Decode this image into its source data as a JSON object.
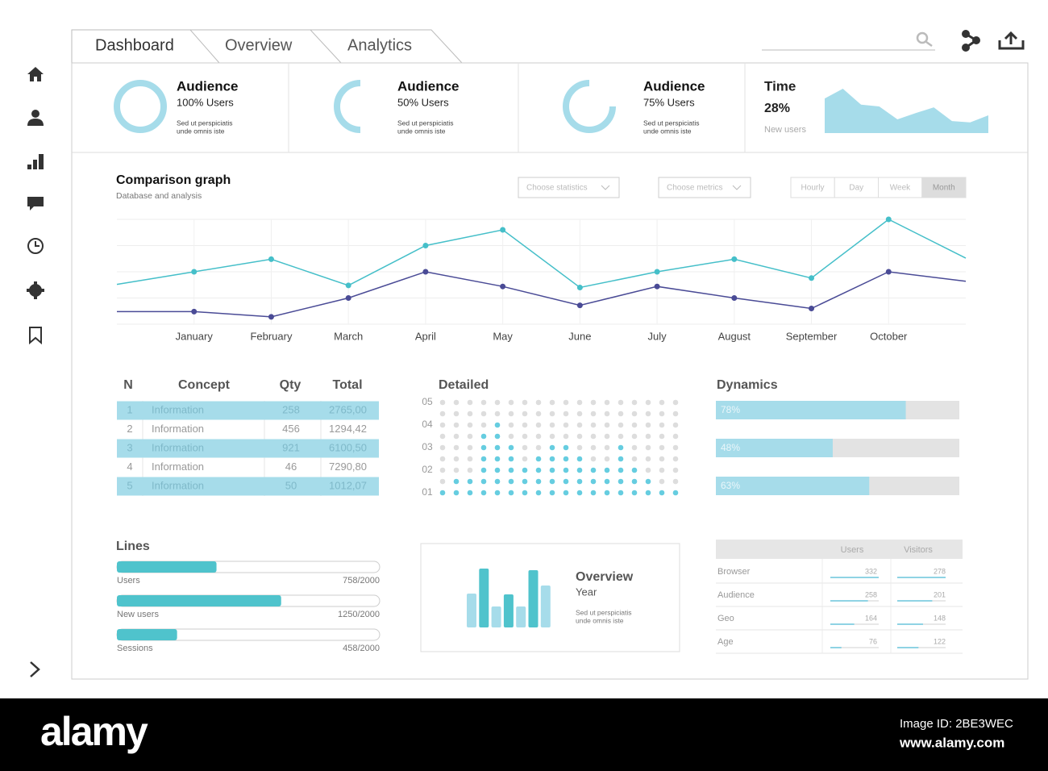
{
  "tabs": [
    "Dashboard",
    "Overview",
    "Analytics"
  ],
  "kpis": [
    {
      "title": "Audience",
      "value": "100% Users",
      "percent": 100,
      "note": [
        "Sed ut perspiciatis",
        "unde omnis iste"
      ]
    },
    {
      "title": "Audience",
      "value": "50% Users",
      "percent": 50,
      "note": [
        "Sed ut perspiciatis",
        "unde omnis iste"
      ]
    },
    {
      "title": "Audience",
      "value": "75% Users",
      "percent": 75,
      "note": [
        "Sed ut perspiciatis",
        "unde omnis iste"
      ]
    }
  ],
  "time_card": {
    "title": "Time",
    "value": "28%",
    "subtitle": "New users",
    "type": "area",
    "trend": [
      78,
      100,
      64,
      60,
      31,
      45,
      58,
      27,
      24,
      40
    ],
    "ylim": [
      0,
      100
    ],
    "color": "#a6dcea"
  },
  "comparison": {
    "title": "Comparison graph",
    "subtitle": "Database and analysis",
    "filters": [
      "Choose statistics",
      "Choose metrics"
    ],
    "periods": [
      "Hourly",
      "Day",
      "Week",
      "Month"
    ],
    "active_period": "Month",
    "chart": {
      "type": "line",
      "categories": [
        null,
        "January",
        "February",
        "March",
        "April",
        "May",
        "June",
        "July",
        "August",
        "September",
        "October",
        null
      ],
      "series": [
        {
          "color": "#45bfc9",
          "values": [
            38,
            50,
            62,
            37,
            75,
            90,
            35,
            50,
            62,
            44,
            100,
            63
          ]
        },
        {
          "color": "#4a4b96",
          "values": [
            12,
            12,
            7,
            25,
            50,
            36,
            18,
            36,
            25,
            15,
            50,
            41
          ]
        }
      ],
      "ylim": [
        0,
        100
      ],
      "grid": true
    }
  },
  "table": {
    "headers": [
      "N",
      "Concept",
      "Qty",
      "Total"
    ],
    "rows": [
      [
        "1",
        "Information",
        "258",
        "2765,00"
      ],
      [
        "2",
        "Information",
        "456",
        "1294,42"
      ],
      [
        "3",
        "Information",
        "921",
        "6100,50"
      ],
      [
        "4",
        "Information",
        "46",
        "7290,80"
      ],
      [
        "5",
        "Information",
        "50",
        "1012,07"
      ]
    ]
  },
  "detailed": {
    "title": "Detailed",
    "type": "dot-matrix",
    "values": [
      1,
      1.5,
      1.5,
      3.5,
      4,
      3,
      2,
      2.5,
      3,
      3,
      2.5,
      2,
      2,
      3,
      2,
      1.5,
      1,
      1
    ],
    "ylim": [
      1,
      5
    ],
    "yticks": [
      {
        "value": 1,
        "label": "01"
      },
      {
        "value": 2,
        "label": "02"
      },
      {
        "value": 3,
        "label": "03"
      },
      {
        "value": 4,
        "label": "04"
      },
      {
        "value": 5,
        "label": "05"
      }
    ],
    "color": "#66cde0"
  },
  "dynamics": {
    "title": "Dynamics",
    "values": [
      78,
      48,
      63
    ],
    "value_labels": [
      "78%",
      "48%",
      "63%"
    ],
    "color": "#a6dcea"
  },
  "lines": {
    "title": "Lines",
    "color": "#4fc3cc",
    "items": [
      {
        "name": "Users",
        "value": 758,
        "max": 2000,
        "value_label": "758/2000"
      },
      {
        "name": "New users",
        "value": 1250,
        "max": 2000,
        "value_label": "1250/2000"
      },
      {
        "name": "Sessions",
        "value": 458,
        "max": 2000,
        "value_label": "458/2000"
      }
    ]
  },
  "overview": {
    "title": "Overview",
    "subtitle": "Year",
    "note": [
      "Sed ut perspiciatis",
      "unde omnis iste"
    ],
    "type": "bar",
    "values": [
      42,
      73,
      26,
      41,
      26,
      71,
      52
    ],
    "colors": [
      "#a6dcea",
      "#4fc3cc",
      "#a6dcea",
      "#4fc3cc",
      "#a6dcea",
      "#4fc3cc",
      "#a6dcea"
    ],
    "ylim": [
      0,
      80
    ]
  },
  "stats_table": {
    "headers": [
      "Users",
      "Visitors"
    ],
    "rows": [
      {
        "label": "Browser",
        "values": [
          332,
          278
        ]
      },
      {
        "label": "Audience",
        "values": [
          258,
          201
        ]
      },
      {
        "label": "Geo",
        "values": [
          164,
          148
        ]
      },
      {
        "label": "Age",
        "values": [
          76,
          122
        ]
      }
    ]
  },
  "watermark": {
    "brand": "alamy",
    "image_id": "Image ID: 2BE3WEC",
    "url": "www.alamy.com"
  }
}
